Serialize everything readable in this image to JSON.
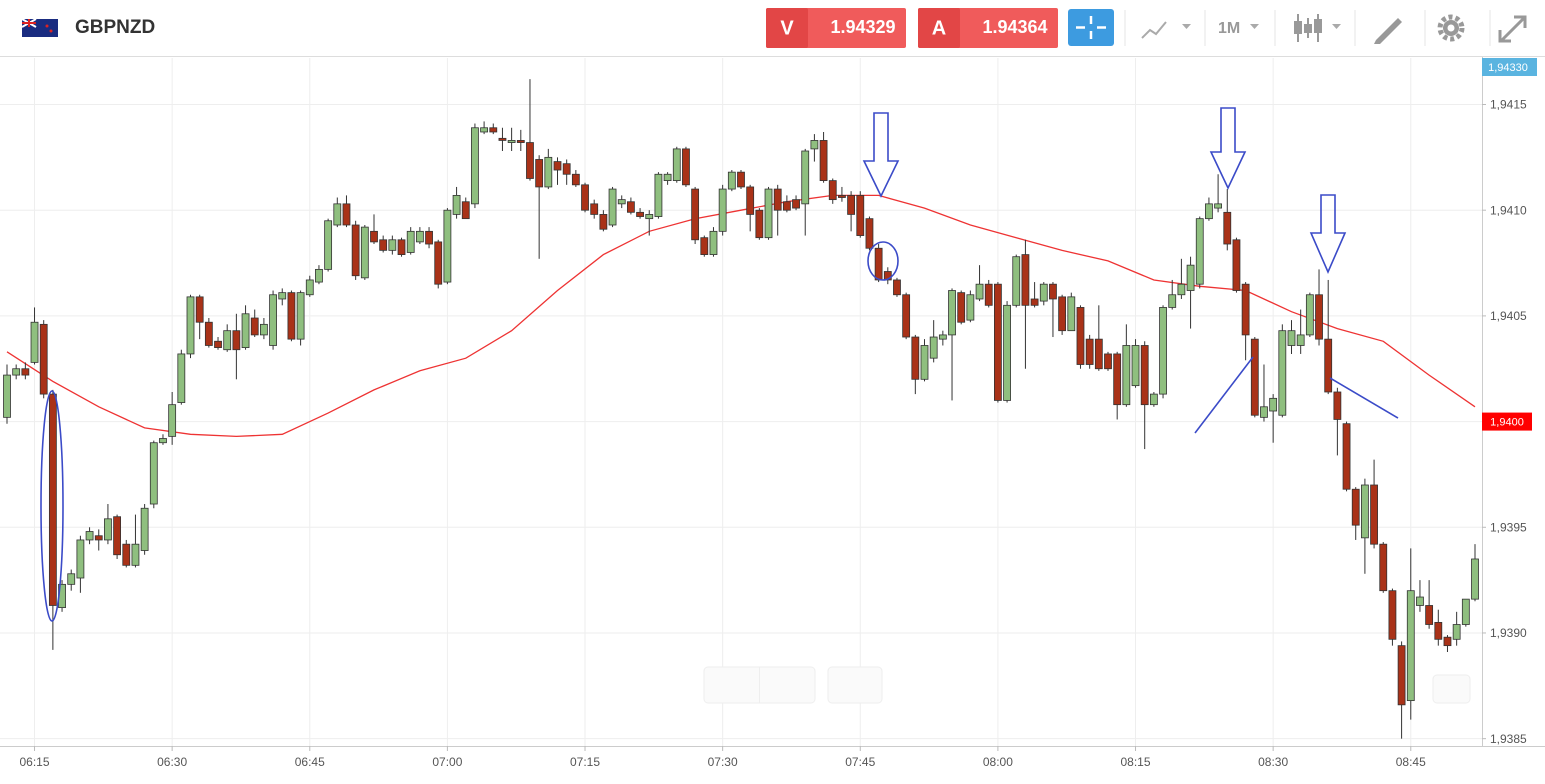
{
  "header": {
    "symbol": "GBPNZD",
    "sell_label": "V",
    "sell_price": 1.94329,
    "buy_label": "A",
    "buy_price": 1.94364,
    "timeframe": "1M"
  },
  "chart_data": {
    "type": "candlestick",
    "up_color": "#8fbf7f",
    "down_color": "#a93218",
    "x": [
      "06:12",
      "06:13",
      "06:14",
      "06:15",
      "06:16",
      "06:17",
      "06:18",
      "06:19",
      "06:20",
      "06:21",
      "06:22",
      "06:23",
      "06:24",
      "06:25",
      "06:26",
      "06:27",
      "06:28",
      "06:29",
      "06:30",
      "06:31",
      "06:32",
      "06:33",
      "06:34",
      "06:35",
      "06:36",
      "06:37",
      "06:38",
      "06:39",
      "06:40",
      "06:41",
      "06:42",
      "06:43",
      "06:44",
      "06:45",
      "06:46",
      "06:47",
      "06:48",
      "06:49",
      "06:50",
      "06:51",
      "06:52",
      "06:53",
      "06:54",
      "06:55",
      "06:56",
      "06:57",
      "06:58",
      "06:59",
      "07:00",
      "07:01",
      "07:02",
      "07:03",
      "07:04",
      "07:05",
      "07:06",
      "07:07",
      "07:08",
      "07:09",
      "07:10",
      "07:11",
      "07:12",
      "07:13",
      "07:14",
      "07:15",
      "07:16",
      "07:17",
      "07:18",
      "07:19",
      "07:20",
      "07:21",
      "07:22",
      "07:23",
      "07:24",
      "07:25",
      "07:26",
      "07:27",
      "07:28",
      "07:29",
      "07:30",
      "07:31",
      "07:32",
      "07:33",
      "07:34",
      "07:35",
      "07:36",
      "07:37",
      "07:38",
      "07:39",
      "07:40",
      "07:41",
      "07:42",
      "07:43",
      "07:44",
      "07:45",
      "07:46",
      "07:47",
      "07:48",
      "07:49",
      "07:50",
      "07:51",
      "07:52",
      "07:53",
      "07:54",
      "07:55",
      "07:56",
      "07:57",
      "07:58",
      "07:59",
      "08:00",
      "08:01",
      "08:02",
      "08:03",
      "08:04",
      "08:05",
      "08:06",
      "08:07",
      "08:08",
      "08:09",
      "08:10",
      "08:11",
      "08:12",
      "08:13",
      "08:14",
      "08:15",
      "08:16",
      "08:17",
      "08:18",
      "08:19",
      "08:20",
      "08:21",
      "08:22",
      "08:23",
      "08:24",
      "08:25",
      "08:26",
      "08:27",
      "08:28",
      "08:29",
      "08:30",
      "08:31",
      "08:32",
      "08:33",
      "08:34",
      "08:35",
      "08:36",
      "08:37",
      "08:38",
      "08:39",
      "08:40",
      "08:41",
      "08:42",
      "08:43",
      "08:44",
      "08:45",
      "08:46",
      "08:47",
      "08:48",
      "08:49",
      "08:50",
      "08:51",
      "08:52"
    ],
    "open": [
      1.94002,
      1.94022,
      1.94025,
      1.94028,
      1.94046,
      1.94013,
      1.93912,
      1.93923,
      1.93926,
      1.93944,
      1.93946,
      1.93944,
      1.93955,
      1.93942,
      1.93932,
      1.93939,
      1.93961,
      1.9399,
      1.93993,
      1.94009,
      1.94032,
      1.94059,
      1.94047,
      1.94038,
      1.94034,
      1.94043,
      1.94035,
      1.94049,
      1.94041,
      1.94036,
      1.94058,
      1.94061,
      1.94039,
      1.9406,
      1.94066,
      1.94072,
      1.94093,
      1.94103,
      1.94093,
      1.94068,
      1.9409,
      1.94086,
      1.94081,
      1.94086,
      1.9408,
      1.94085,
      1.9409,
      1.94085,
      1.94066,
      1.94098,
      1.94104,
      1.94103,
      1.94137,
      1.94139,
      1.94134,
      1.94132,
      1.94133,
      1.94132,
      1.94124,
      1.94111,
      1.94123,
      1.94122,
      1.94117,
      1.94112,
      1.94103,
      1.94098,
      1.94093,
      1.94103,
      1.94104,
      1.94099,
      1.94096,
      1.94097,
      1.94114,
      1.94114,
      1.94129,
      1.9411,
      1.94087,
      1.94079,
      1.9409,
      1.9411,
      1.94118,
      1.94111,
      1.941,
      1.94087,
      1.9411,
      1.94104,
      1.94105,
      1.94103,
      1.94129,
      1.94133,
      1.94114,
      1.94107,
      1.94107,
      1.94107,
      1.94096,
      1.94082,
      1.94071,
      1.94067,
      1.9406,
      1.9404,
      1.9402,
      1.9403,
      1.94039,
      1.94041,
      1.94061,
      1.94048,
      1.94058,
      1.94065,
      1.94065,
      1.9401,
      1.94055,
      1.94079,
      1.94058,
      1.94057,
      1.94065,
      1.94059,
      1.94043,
      1.94054,
      1.94039,
      1.94039,
      1.94032,
      1.94032,
      1.94008,
      1.94017,
      1.94036,
      1.94008,
      1.94013,
      1.94054,
      1.9406,
      1.94062,
      1.94065,
      1.94096,
      1.94101,
      1.94099,
      1.94086,
      1.94065,
      1.94039,
      1.94002,
      1.94005,
      1.94003,
      1.94036,
      1.94036,
      1.94041,
      1.9406,
      1.94039,
      1.94014,
      1.93999,
      1.93968,
      1.93945,
      1.9397,
      1.93942,
      1.9392,
      1.93894,
      1.93868,
      1.93913,
      1.93913,
      1.93905,
      1.93898,
      1.93897,
      1.93904,
      1.93916
    ],
    "high": [
      1.94027,
      1.94027,
      1.94028,
      1.94054,
      1.94048,
      1.94015,
      1.93925,
      1.9393,
      1.93946,
      1.9395,
      1.93949,
      1.93961,
      1.93956,
      1.93944,
      1.93956,
      1.93961,
      1.93991,
      1.93994,
      1.94014,
      1.94034,
      1.9406,
      1.9406,
      1.94049,
      1.9404,
      1.94046,
      1.94051,
      1.94055,
      1.94053,
      1.94049,
      1.94062,
      1.94063,
      1.94062,
      1.94062,
      1.94069,
      1.94074,
      1.94096,
      1.94106,
      1.94107,
      1.94095,
      1.94093,
      1.94098,
      1.94088,
      1.94088,
      1.94087,
      1.94092,
      1.94092,
      1.94092,
      1.94086,
      1.94101,
      1.94111,
      1.94106,
      1.94141,
      1.94142,
      1.94141,
      1.94139,
      1.94139,
      1.94138,
      1.94162,
      1.94126,
      1.94129,
      1.94125,
      1.94124,
      1.94119,
      1.94113,
      1.94105,
      1.941,
      1.94111,
      1.94107,
      1.94106,
      1.94101,
      1.941,
      1.94118,
      1.94118,
      1.9413,
      1.9413,
      1.94111,
      1.94088,
      1.94092,
      1.94112,
      1.94119,
      1.94119,
      1.94112,
      1.94101,
      1.94111,
      1.94112,
      1.94107,
      1.94107,
      1.94129,
      1.94136,
      1.94137,
      1.94115,
      1.94111,
      1.94109,
      1.94109,
      1.94097,
      1.94084,
      1.94073,
      1.94068,
      1.94061,
      1.94041,
      1.94039,
      1.94048,
      1.94043,
      1.94063,
      1.94062,
      1.94062,
      1.94074,
      1.94067,
      1.94066,
      1.94057,
      1.94079,
      1.94086,
      1.94066,
      1.94066,
      1.94066,
      1.9406,
      1.94061,
      1.94055,
      1.94041,
      1.94055,
      1.94033,
      1.94033,
      1.94046,
      1.94039,
      1.94038,
      1.94014,
      1.94055,
      1.94067,
      1.94077,
      1.94078,
      1.94097,
      1.94106,
      1.94117,
      1.9411,
      1.94087,
      1.94066,
      1.9404,
      1.94027,
      1.94013,
      1.94046,
      1.94048,
      1.94053,
      1.94061,
      1.94072,
      1.94067,
      1.94016,
      1.94,
      1.93969,
      1.93973,
      1.93982,
      1.93943,
      1.93921,
      1.93896,
      1.9394,
      1.93925,
      1.93925,
      1.93911,
      1.93899,
      1.9391,
      1.93916,
      1.93942
    ],
    "low": [
      1.93999,
      1.9402,
      1.9402,
      1.94027,
      1.94011,
      1.93892,
      1.9391,
      1.9392,
      1.93919,
      1.93942,
      1.93939,
      1.93942,
      1.93935,
      1.93931,
      1.93931,
      1.93937,
      1.93959,
      1.93989,
      1.93989,
      1.94008,
      1.9403,
      1.94039,
      1.94035,
      1.94034,
      1.94033,
      1.9402,
      1.94034,
      1.9404,
      1.94039,
      1.94034,
      1.94055,
      1.94038,
      1.94036,
      1.94059,
      1.94065,
      1.94071,
      1.94092,
      1.94092,
      1.94067,
      1.94067,
      1.94084,
      1.9408,
      1.94079,
      1.94078,
      1.94079,
      1.94084,
      1.94082,
      1.94063,
      1.94065,
      1.94096,
      1.94096,
      1.94101,
      1.94136,
      1.94136,
      1.94128,
      1.94128,
      1.94128,
      1.94114,
      1.94077,
      1.9411,
      1.94112,
      1.94112,
      1.94111,
      1.94099,
      1.94096,
      1.9409,
      1.94092,
      1.94101,
      1.94098,
      1.94096,
      1.94088,
      1.94096,
      1.94112,
      1.94113,
      1.94111,
      1.94084,
      1.94078,
      1.94078,
      1.94088,
      1.94109,
      1.9411,
      1.9409,
      1.94086,
      1.94086,
      1.94088,
      1.94099,
      1.941,
      1.94088,
      1.94123,
      1.94113,
      1.94103,
      1.94104,
      1.9409,
      1.94087,
      1.94081,
      1.94066,
      1.94065,
      1.94059,
      1.94039,
      1.94013,
      1.94019,
      1.94028,
      1.94036,
      1.9401,
      1.94046,
      1.94047,
      1.94057,
      1.94054,
      1.94009,
      1.94009,
      1.94054,
      1.94025,
      1.94054,
      1.94055,
      1.9404,
      1.94041,
      1.94043,
      1.94025,
      1.94025,
      1.94024,
      1.94024,
      1.94001,
      1.94007,
      1.94016,
      1.93987,
      1.94007,
      1.94011,
      1.94053,
      1.94058,
      1.94044,
      1.94063,
      1.94095,
      1.94099,
      1.94081,
      1.94061,
      1.94029,
      1.94002,
      1.94,
      1.9399,
      1.94002,
      1.94032,
      1.94032,
      1.9404,
      1.94036,
      1.94013,
      1.93984,
      1.93967,
      1.93944,
      1.93928,
      1.9394,
      1.93919,
      1.93894,
      1.9385,
      1.93859,
      1.9391,
      1.93902,
      1.93894,
      1.93891,
      1.93894,
      1.93903,
      1.93915
    ],
    "close": [
      1.94022,
      1.94025,
      1.94022,
      1.94047,
      1.94013,
      1.93913,
      1.93923,
      1.93928,
      1.93944,
      1.93948,
      1.93944,
      1.93954,
      1.93937,
      1.93932,
      1.93942,
      1.93959,
      1.9399,
      1.93992,
      1.94008,
      1.94032,
      1.94059,
      1.94047,
      1.94036,
      1.94035,
      1.94043,
      1.94034,
      1.94051,
      1.94041,
      1.94046,
      1.9406,
      1.94061,
      1.94039,
      1.94061,
      1.94067,
      1.94072,
      1.94095,
      1.94103,
      1.94093,
      1.94069,
      1.94092,
      1.94085,
      1.94081,
      1.94086,
      1.94079,
      1.9409,
      1.9409,
      1.94084,
      1.94065,
      1.941,
      1.94107,
      1.94096,
      1.94139,
      1.94139,
      1.94137,
      1.94133,
      1.94133,
      1.94132,
      1.94115,
      1.94111,
      1.94125,
      1.94119,
      1.94117,
      1.94112,
      1.941,
      1.94098,
      1.94091,
      1.9411,
      1.94105,
      1.94099,
      1.94097,
      1.94098,
      1.94117,
      1.94117,
      1.94129,
      1.94112,
      1.94086,
      1.94079,
      1.9409,
      1.9411,
      1.94118,
      1.94111,
      1.94098,
      1.94087,
      1.9411,
      1.941,
      1.941,
      1.94101,
      1.94128,
      1.94133,
      1.94114,
      1.94105,
      1.94106,
      1.94098,
      1.94088,
      1.94082,
      1.94067,
      1.94067,
      1.9406,
      1.9404,
      1.9402,
      1.94036,
      1.9404,
      1.94041,
      1.94062,
      1.94047,
      1.9406,
      1.94065,
      1.94055,
      1.9401,
      1.94055,
      1.94078,
      1.94055,
      1.94055,
      1.94065,
      1.94058,
      1.94043,
      1.94059,
      1.94027,
      1.94027,
      1.94025,
      1.94025,
      1.94008,
      1.94036,
      1.94036,
      1.94008,
      1.94013,
      1.94054,
      1.9406,
      1.94065,
      1.94074,
      1.94096,
      1.94103,
      1.94103,
      1.94084,
      1.94062,
      1.94041,
      1.94003,
      1.94007,
      1.94011,
      1.94043,
      1.94043,
      1.94041,
      1.9406,
      1.94039,
      1.94014,
      1.94001,
      1.93968,
      1.93951,
      1.9397,
      1.93942,
      1.9392,
      1.93897,
      1.93866,
      1.9392,
      1.93917,
      1.93904,
      1.93897,
      1.93894,
      1.93904,
      1.93916,
      1.93935
    ],
    "overlays": [
      {
        "type": "line",
        "color": "#ee3333",
        "x": [
          "06:12",
          "06:17",
          "06:22",
          "06:27",
          "06:32",
          "06:37",
          "06:42",
          "06:47",
          "06:52",
          "06:57",
          "07:02",
          "07:07",
          "07:12",
          "07:17",
          "07:22",
          "07:27",
          "07:32",
          "07:37",
          "07:42",
          "07:47",
          "07:52",
          "07:57",
          "08:02",
          "08:07",
          "08:12",
          "08:17",
          "08:22",
          "08:27",
          "08:32",
          "08:37",
          "08:42",
          "08:47",
          "08:52"
        ],
        "values": [
          1.94033,
          1.94019,
          1.94007,
          1.93997,
          1.93994,
          1.93993,
          1.93994,
          1.94004,
          1.94015,
          1.94024,
          1.9403,
          1.94043,
          1.94062,
          1.94079,
          1.9409,
          1.94096,
          1.941,
          1.94104,
          1.94107,
          1.94107,
          1.94101,
          1.94093,
          1.94087,
          1.94081,
          1.94076,
          1.94067,
          1.94064,
          1.94062,
          1.94052,
          1.94044,
          1.94038,
          1.94022,
          1.94007
        ]
      }
    ],
    "ylim": [
      1.93847,
      1.94172
    ],
    "yticks": [
      {
        "value": 1.9385,
        "label": "1,9385"
      },
      {
        "value": 1.939,
        "label": "1,9390"
      },
      {
        "value": 1.9395,
        "label": "1,9395"
      },
      {
        "value": 1.94,
        "label": "1,9400"
      },
      {
        "value": 1.9405,
        "label": "1,9405"
      },
      {
        "value": 1.941,
        "label": "1,9410"
      },
      {
        "value": 1.9415,
        "label": "1,9415"
      }
    ],
    "xticks": [
      "06:15",
      "06:30",
      "06:45",
      "07:00",
      "07:15",
      "07:30",
      "07:45",
      "08:00",
      "08:15",
      "08:30",
      "08:45"
    ],
    "grid": true,
    "price_tags": [
      {
        "value": 1.94,
        "label": "1,9400",
        "color": "#ff0000"
      }
    ],
    "current_price_label": "1,94330"
  }
}
